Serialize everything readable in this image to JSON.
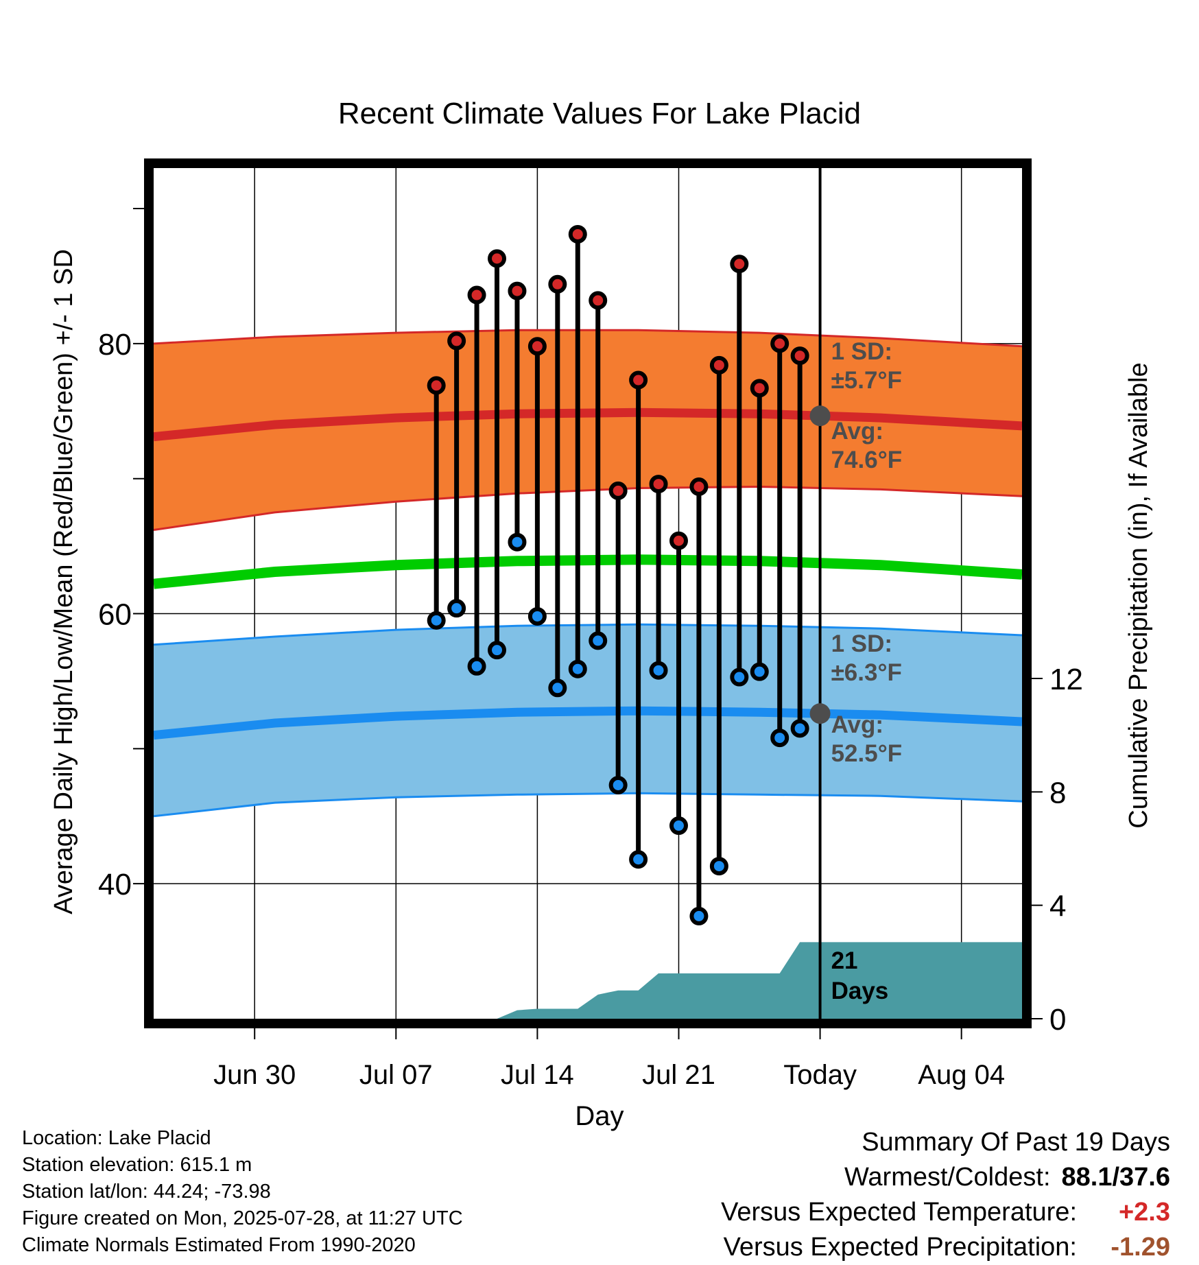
{
  "chart_data": {
    "type": "line",
    "title": "Recent Climate Values For Lake Placid",
    "xlabel": "Day",
    "ylabel": "Average Daily High/Low/Mean (Red/Blue/Green) +/- 1 SD",
    "y2label": "Cumulative Precipitation (in), If Available",
    "ylim": [
      30,
      93
    ],
    "y2lim": [
      0,
      30
    ],
    "yticks": [
      40,
      60,
      80
    ],
    "y2ticks": [
      0,
      4,
      8,
      12
    ],
    "x_range": [
      "2025-06-25",
      "2025-08-07"
    ],
    "x_ticks": [
      {
        "date": "2025-06-30",
        "label": "Jun 30"
      },
      {
        "date": "2025-07-07",
        "label": "Jul 07"
      },
      {
        "date": "2025-07-14",
        "label": "Jul 14"
      },
      {
        "date": "2025-07-21",
        "label": "Jul 21"
      },
      {
        "date": "2025-07-28",
        "label": "Today"
      },
      {
        "date": "2025-08-04",
        "label": "Aug 04"
      }
    ],
    "today": "2025-07-28",
    "normals": {
      "dates": [
        "2025-06-25",
        "2025-07-01",
        "2025-07-07",
        "2025-07-13",
        "2025-07-19",
        "2025-07-25",
        "2025-07-31",
        "2025-08-07"
      ],
      "high_avg": [
        73.1,
        74.0,
        74.5,
        74.8,
        74.9,
        74.8,
        74.5,
        73.9
      ],
      "high_upper": [
        80.0,
        80.5,
        80.8,
        81.0,
        81.0,
        80.8,
        80.4,
        79.8
      ],
      "high_lower": [
        66.2,
        67.5,
        68.3,
        68.9,
        69.3,
        69.4,
        69.2,
        68.7
      ],
      "low_avg": [
        51.0,
        51.9,
        52.4,
        52.7,
        52.8,
        52.7,
        52.5,
        52.0
      ],
      "low_upper": [
        57.7,
        58.3,
        58.8,
        59.1,
        59.2,
        59.1,
        58.9,
        58.4
      ],
      "low_lower": [
        45.0,
        46.0,
        46.4,
        46.6,
        46.7,
        46.6,
        46.5,
        46.1
      ],
      "mean_avg": [
        62.2,
        63.1,
        63.6,
        63.9,
        64.0,
        63.9,
        63.6,
        62.9
      ]
    },
    "series": [
      {
        "dates": [
          "2025-07-09",
          "2025-07-10",
          "2025-07-11",
          "2025-07-12",
          "2025-07-13",
          "2025-07-14",
          "2025-07-15",
          "2025-07-16",
          "2025-07-17",
          "2025-07-18",
          "2025-07-19",
          "2025-07-20",
          "2025-07-21",
          "2025-07-22",
          "2025-07-23",
          "2025-07-24",
          "2025-07-25",
          "2025-07-26",
          "2025-07-27"
        ],
        "values": [
          76.9,
          80.2,
          83.6,
          86.3,
          83.9,
          79.8,
          84.4,
          88.1,
          83.2,
          69.1,
          77.3,
          69.6,
          65.4,
          69.4,
          78.4,
          85.9,
          76.7,
          80.0,
          79.1
        ]
      },
      {
        "dates": [
          "2025-07-09",
          "2025-07-10",
          "2025-07-11",
          "2025-07-12",
          "2025-07-13",
          "2025-07-14",
          "2025-07-15",
          "2025-07-16",
          "2025-07-17",
          "2025-07-18",
          "2025-07-19",
          "2025-07-20",
          "2025-07-21",
          "2025-07-22",
          "2025-07-23",
          "2025-07-24",
          "2025-07-25",
          "2025-07-26",
          "2025-07-27"
        ],
        "values": [
          59.5,
          60.4,
          56.1,
          57.3,
          65.3,
          59.8,
          54.5,
          55.9,
          58.0,
          47.3,
          41.8,
          55.8,
          44.3,
          37.6,
          41.3,
          55.3,
          55.7,
          50.8,
          51.5
        ]
      }
    ],
    "precip": {
      "dates": [
        "2025-07-12",
        "2025-07-13",
        "2025-07-14",
        "2025-07-15",
        "2025-07-16",
        "2025-07-17",
        "2025-07-18",
        "2025-07-19",
        "2025-07-20",
        "2025-07-21",
        "2025-07-22",
        "2025-07-23",
        "2025-07-24",
        "2025-07-25",
        "2025-07-26",
        "2025-07-27",
        "2025-08-07"
      ],
      "values": [
        0.0,
        0.3,
        0.35,
        0.35,
        0.35,
        0.85,
        1.0,
        1.0,
        1.6,
        1.6,
        1.6,
        1.6,
        1.6,
        1.6,
        1.6,
        2.7,
        2.7
      ]
    },
    "annotations": {
      "high_sd_label": "1 SD:",
      "high_sd_value": "±5.7°F",
      "high_avg_label": "Avg:",
      "high_avg_value": "74.6°F",
      "low_sd_label": "1 SD:",
      "low_sd_value": "±6.3°F",
      "low_avg_label": "Avg:",
      "low_avg_value": "52.5°F",
      "days_number": "21",
      "days_word": "Days"
    },
    "colors": {
      "high_band": "#f47c30",
      "high_line": "#d42828",
      "low_band": "#80c0e6",
      "low_line": "#1a8cf0",
      "mean_line": "#00cc00",
      "precip_fill": "#4a9ba2",
      "high_marker": "#d42828",
      "low_marker": "#1a8cf0",
      "annotation_text": "#4d4d4d"
    }
  },
  "info": {
    "location": "Location: Lake Placid",
    "elevation": "Station elevation: 615.1 m",
    "latlon": "Station lat/lon: 44.24; -73.98",
    "created": "Figure created on Mon, 2025-07-28, at 11:27 UTC",
    "normals_period": "Climate Normals Estimated From 1990-2020"
  },
  "summary": {
    "heading": "Summary Of Past 19 Days",
    "warmest_coldest_label": "Warmest/Coldest:",
    "warmest_coldest_value": "88.1/37.6",
    "temp_label": "Versus Expected Temperature:",
    "temp_value": "+2.3",
    "temp_color": "#d42828",
    "precip_label": "Versus Expected Precipitation:",
    "precip_value": "-1.29",
    "precip_color": "#a0522d"
  }
}
